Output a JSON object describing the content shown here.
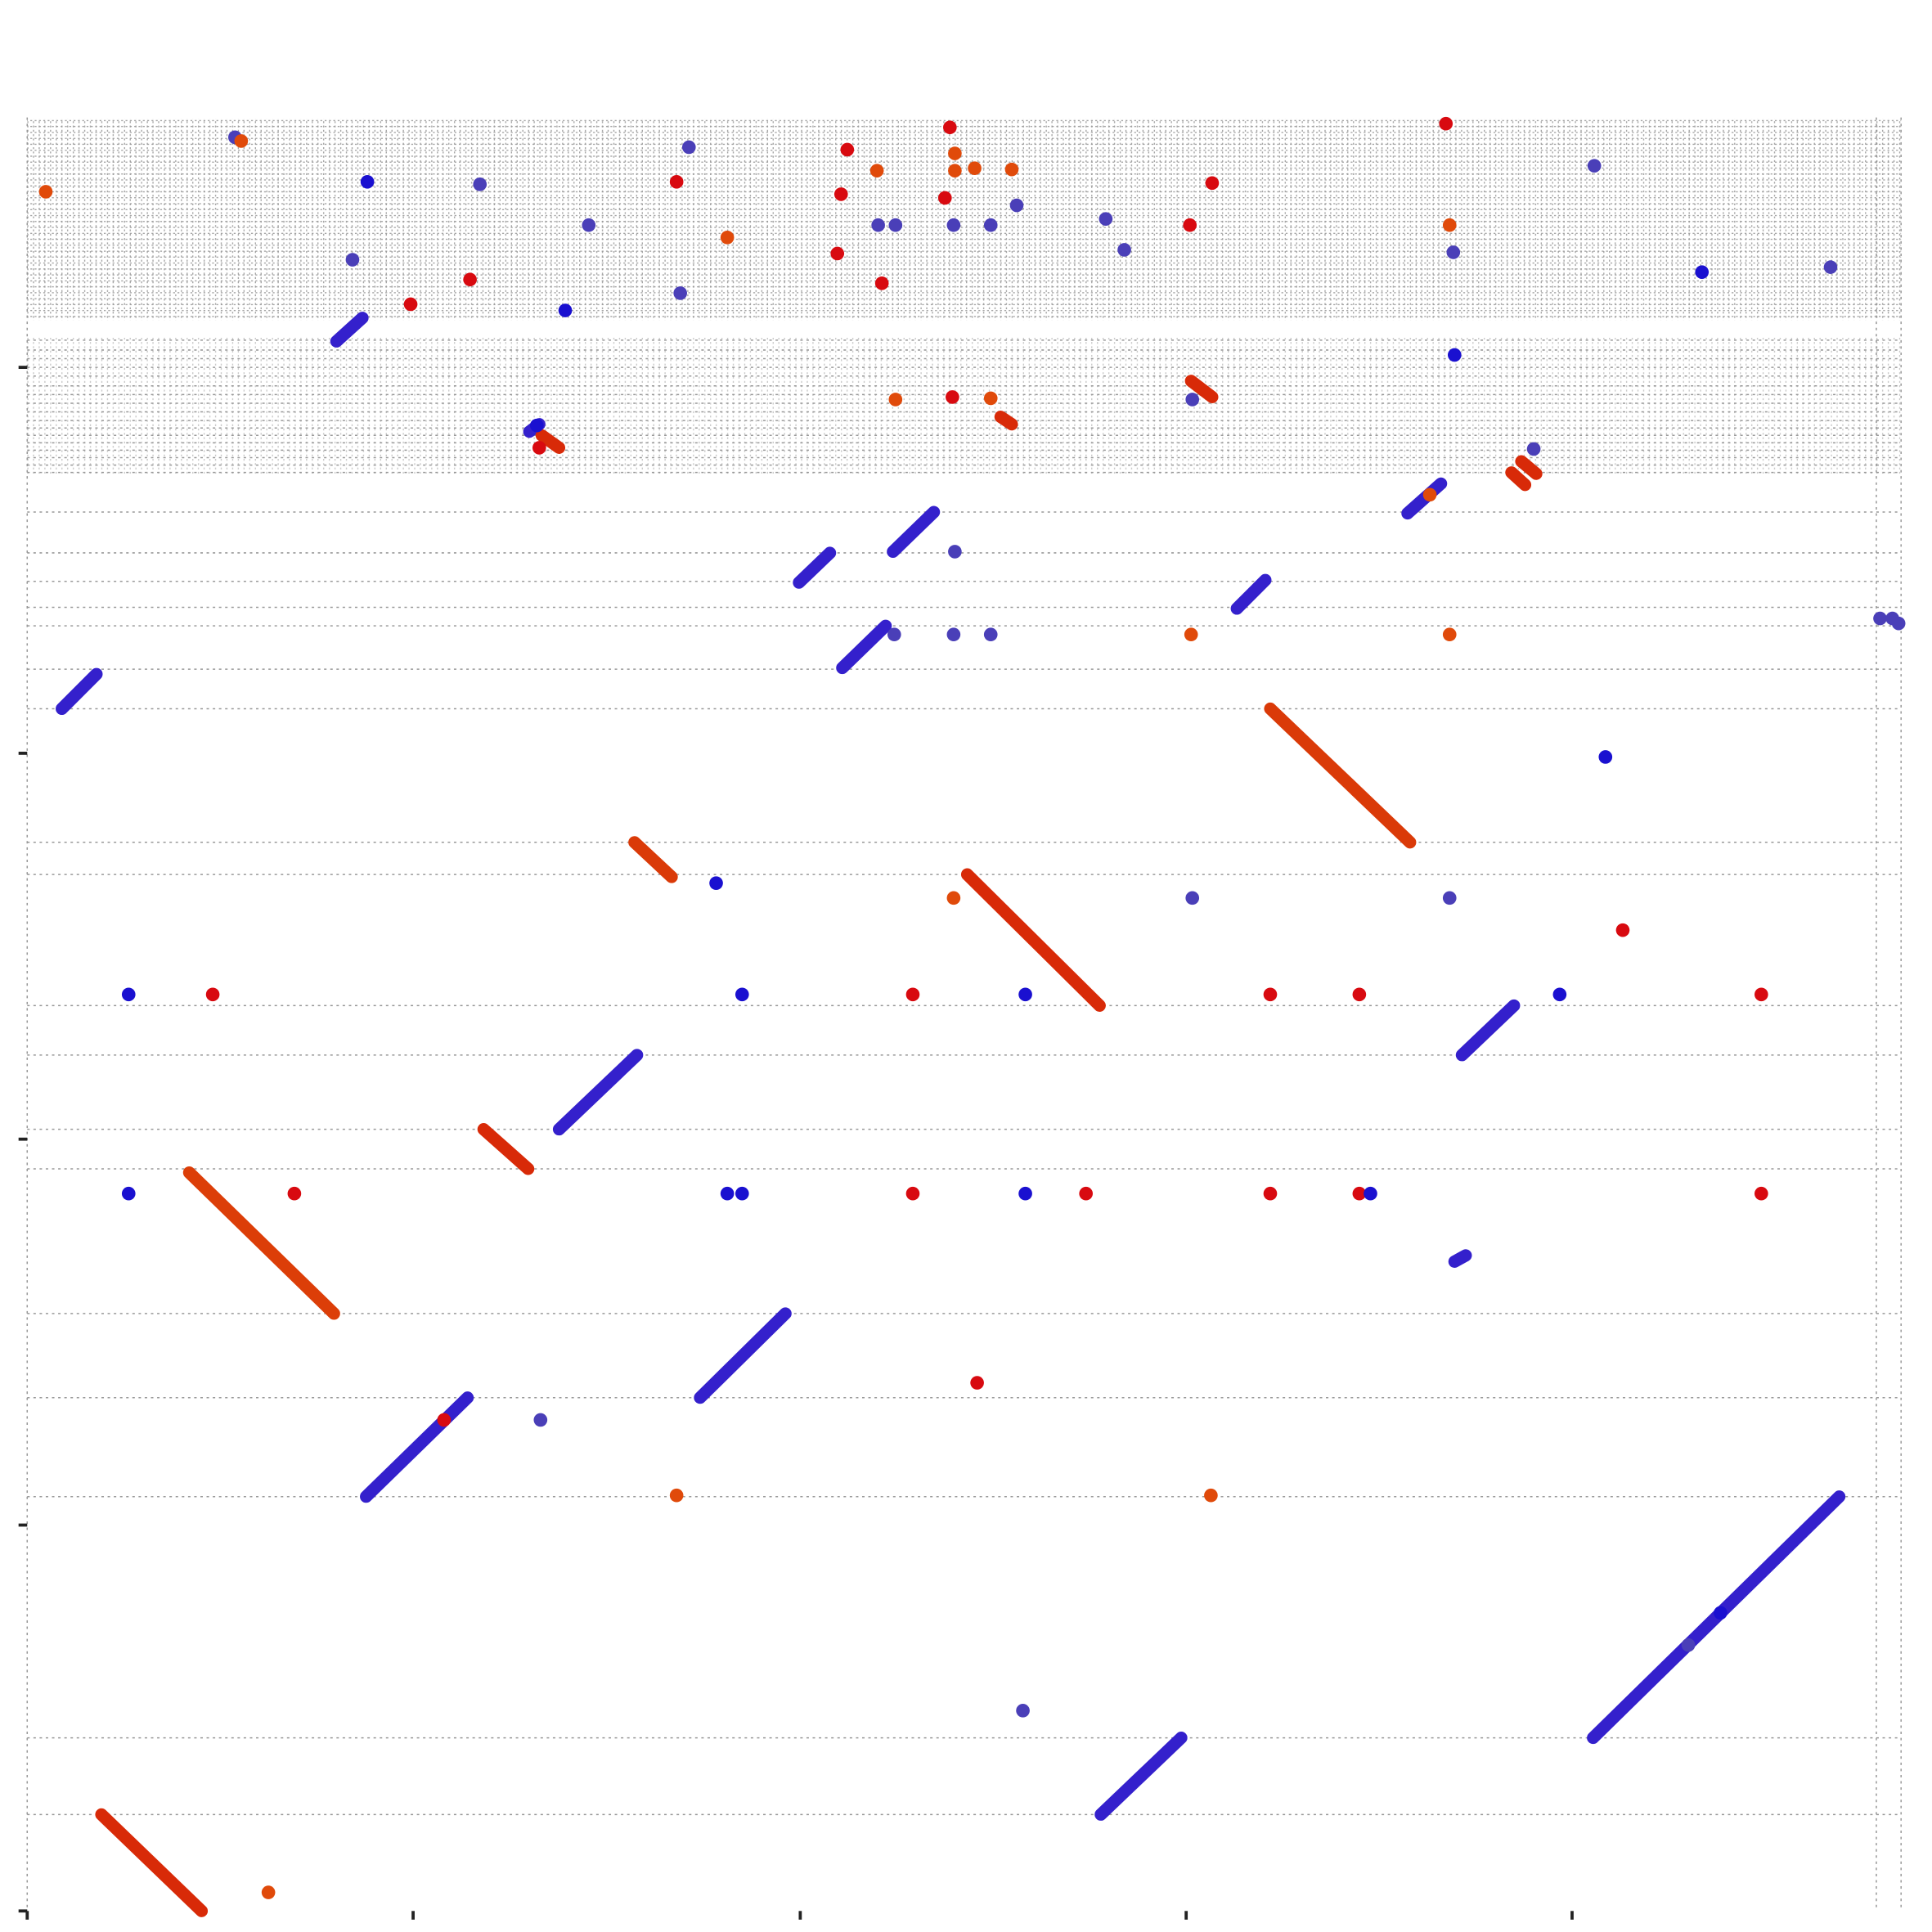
{
  "chart_data": {
    "type": "dotplot",
    "xlim": [
      0,
      1515
    ],
    "ylim": [
      0,
      1450
    ],
    "xticks": [
      0,
      312,
      625,
      937,
      1249
    ],
    "yticks": [
      0,
      312,
      624,
      936,
      1248
    ],
    "hlines": [
      1270,
      1262,
      1255,
      1248,
      1241,
      1233,
      1226,
      1219,
      1212,
      1205,
      1199,
      1193,
      1187,
      1181,
      1175,
      1169,
      1163,
      1131,
      1098,
      1075,
      1054,
      1039,
      1004,
      972,
      864,
      838,
      732,
      692,
      632,
      600,
      483,
      415,
      335,
      140,
      78
    ],
    "vlines": [
      0,
      1495,
      1515
    ],
    "grid_color": "#999999",
    "segments": [
      {
        "x": [
          250,
          271
        ],
        "y": [
          1269,
          1288
        ],
        "color": "#3420cc"
      },
      {
        "x": [
          28,
          56
        ],
        "y": [
          972,
          1000
        ],
        "color": "#3420cc"
      },
      {
        "x": [
          624,
          649
        ],
        "y": [
          1074,
          1098
        ],
        "color": "#3420cc"
      },
      {
        "x": [
          700,
          733
        ],
        "y": [
          1099,
          1131
        ],
        "color": "#3420cc"
      },
      {
        "x": [
          659,
          694
        ],
        "y": [
          1005,
          1039
        ],
        "color": "#3420cc"
      },
      {
        "x": [
          978,
          1001
        ],
        "y": [
          1053,
          1076
        ],
        "color": "#3420cc"
      },
      {
        "x": [
          1116,
          1143
        ],
        "y": [
          1130,
          1154
        ],
        "color": "#3420cc"
      },
      {
        "x": [
          430,
          493
        ],
        "y": [
          632,
          692
        ],
        "color": "#3420cc"
      },
      {
        "x": [
          1160,
          1202
        ],
        "y": [
          692,
          732
        ],
        "color": "#3420cc"
      },
      {
        "x": [
          544,
          613
        ],
        "y": [
          415,
          483
        ],
        "color": "#3420cc"
      },
      {
        "x": [
          274,
          356
        ],
        "y": [
          335,
          415
        ],
        "color": "#3420cc"
      },
      {
        "x": [
          868,
          933
        ],
        "y": [
          78,
          140
        ],
        "color": "#3420cc"
      },
      {
        "x": [
          1266,
          1465
        ],
        "y": [
          140,
          335
        ],
        "color": "#3420cc"
      },
      {
        "x": [
          1154,
          1163
        ],
        "y": [
          525,
          530
        ],
        "color": "#3420cc"
      },
      {
        "x": [
          406,
          414
        ],
        "y": [
          1196,
          1202
        ],
        "color": "#3420cc"
      },
      {
        "x": [
          1005,
          1118
        ],
        "y": [
          972,
          864
        ],
        "color": "#da3a08"
      },
      {
        "x": [
          491,
          521
        ],
        "y": [
          864,
          836
        ],
        "color": "#da3a08"
      },
      {
        "x": [
          760,
          867
        ],
        "y": [
          838,
          732
        ],
        "color": "#d82a08"
      },
      {
        "x": [
          369,
          405
        ],
        "y": [
          632,
          600
        ],
        "color": "#d82a08"
      },
      {
        "x": [
          131,
          248
        ],
        "y": [
          597,
          483
        ],
        "color": "#dc3e08"
      },
      {
        "x": [
          60,
          141
        ],
        "y": [
          78,
          0
        ],
        "color": "#d82a08"
      },
      {
        "x": [
          416,
          430
        ],
        "y": [
          1193,
          1183
        ],
        "color": "#d82a08"
      },
      {
        "x": [
          941,
          958
        ],
        "y": [
          1237,
          1224
        ],
        "color": "#d82a08"
      },
      {
        "x": [
          1200,
          1211
        ],
        "y": [
          1163,
          1153
        ],
        "color": "#d82a08"
      },
      {
        "x": [
          1208,
          1220
        ],
        "y": [
          1172,
          1162
        ],
        "color": "#d82a08"
      },
      {
        "x": [
          787,
          796
        ],
        "y": [
          1208,
          1202
        ],
        "color": "#d82a08"
      }
    ],
    "points": [
      {
        "x": 15,
        "y": 1390,
        "color": "#e04a0a"
      },
      {
        "x": 168,
        "y": 1434,
        "color": "#4a3fb8"
      },
      {
        "x": 173,
        "y": 1431,
        "color": "#e04a0a"
      },
      {
        "x": 275,
        "y": 1398,
        "color": "#1a10d0"
      },
      {
        "x": 366,
        "y": 1396,
        "color": "#4a3fb8"
      },
      {
        "x": 454,
        "y": 1363,
        "color": "#4a3fb8"
      },
      {
        "x": 535,
        "y": 1426,
        "color": "#4a3fb8"
      },
      {
        "x": 525,
        "y": 1398,
        "color": "#d80a10"
      },
      {
        "x": 566,
        "y": 1353,
        "color": "#e04a0a"
      },
      {
        "x": 310,
        "y": 1299,
        "color": "#d80a10"
      },
      {
        "x": 358,
        "y": 1319,
        "color": "#d80a10"
      },
      {
        "x": 263,
        "y": 1335,
        "color": "#4a3fb8"
      },
      {
        "x": 435,
        "y": 1294,
        "color": "#1a10d0"
      },
      {
        "x": 528,
        "y": 1308,
        "color": "#4a3fb8"
      },
      {
        "x": 663,
        "y": 1424,
        "color": "#d80a10"
      },
      {
        "x": 658,
        "y": 1388,
        "color": "#d80a10"
      },
      {
        "x": 687,
        "y": 1407,
        "color": "#e04a0a"
      },
      {
        "x": 688,
        "y": 1363,
        "color": "#4a3fb8"
      },
      {
        "x": 702,
        "y": 1363,
        "color": "#4a3fb8"
      },
      {
        "x": 655,
        "y": 1340,
        "color": "#d80a10"
      },
      {
        "x": 691,
        "y": 1316,
        "color": "#d80a10"
      },
      {
        "x": 746,
        "y": 1442,
        "color": "#d80a10"
      },
      {
        "x": 750,
        "y": 1421,
        "color": "#e04a0a"
      },
      {
        "x": 750,
        "y": 1407,
        "color": "#e04a0a"
      },
      {
        "x": 766,
        "y": 1409,
        "color": "#e04a0a"
      },
      {
        "x": 796,
        "y": 1408,
        "color": "#e04a0a"
      },
      {
        "x": 742,
        "y": 1385,
        "color": "#d80a10"
      },
      {
        "x": 749,
        "y": 1363,
        "color": "#4a3fb8"
      },
      {
        "x": 779,
        "y": 1363,
        "color": "#4a3fb8"
      },
      {
        "x": 800,
        "y": 1379,
        "color": "#4a3fb8"
      },
      {
        "x": 872,
        "y": 1368,
        "color": "#4a3fb8"
      },
      {
        "x": 887,
        "y": 1343,
        "color": "#4a3fb8"
      },
      {
        "x": 940,
        "y": 1363,
        "color": "#d80a10"
      },
      {
        "x": 958,
        "y": 1397,
        "color": "#d80a10"
      },
      {
        "x": 1147,
        "y": 1445,
        "color": "#d80a10"
      },
      {
        "x": 1150,
        "y": 1363,
        "color": "#e04a0a"
      },
      {
        "x": 1153,
        "y": 1341,
        "color": "#4a3fb8"
      },
      {
        "x": 1267,
        "y": 1411,
        "color": "#4a3fb8"
      },
      {
        "x": 1354,
        "y": 1325,
        "color": "#1a10d0"
      },
      {
        "x": 1458,
        "y": 1329,
        "color": "#4a3fb8"
      },
      {
        "x": 1154,
        "y": 1258,
        "color": "#1a10d0"
      },
      {
        "x": 702,
        "y": 1222,
        "color": "#e04a0a"
      },
      {
        "x": 748,
        "y": 1224,
        "color": "#d80a10"
      },
      {
        "x": 779,
        "y": 1223,
        "color": "#e04a0a"
      },
      {
        "x": 942,
        "y": 1222,
        "color": "#4a3fb8"
      },
      {
        "x": 412,
        "y": 1201,
        "color": "#1a10d0"
      },
      {
        "x": 414,
        "y": 1183,
        "color": "#d80a10"
      },
      {
        "x": 1218,
        "y": 1182,
        "color": "#4a3fb8"
      },
      {
        "x": 1134,
        "y": 1145,
        "color": "#e04a0a"
      },
      {
        "x": 750,
        "y": 1099,
        "color": "#4a3fb8"
      },
      {
        "x": 701,
        "y": 1032,
        "color": "#4a3fb8"
      },
      {
        "x": 749,
        "y": 1032,
        "color": "#4a3fb8"
      },
      {
        "x": 779,
        "y": 1032,
        "color": "#4a3fb8"
      },
      {
        "x": 941,
        "y": 1032,
        "color": "#e04a0a"
      },
      {
        "x": 1150,
        "y": 1032,
        "color": "#e04a0a"
      },
      {
        "x": 1276,
        "y": 933,
        "color": "#1a10d0"
      },
      {
        "x": 557,
        "y": 831,
        "color": "#1a10d0"
      },
      {
        "x": 749,
        "y": 819,
        "color": "#e04a0a"
      },
      {
        "x": 942,
        "y": 819,
        "color": "#4a3fb8"
      },
      {
        "x": 1150,
        "y": 819,
        "color": "#4a3fb8"
      },
      {
        "x": 1290,
        "y": 793,
        "color": "#d80a10"
      },
      {
        "x": 82,
        "y": 741,
        "color": "#1a10d0"
      },
      {
        "x": 150,
        "y": 741,
        "color": "#d80a10"
      },
      {
        "x": 578,
        "y": 741,
        "color": "#1a10d0"
      },
      {
        "x": 716,
        "y": 741,
        "color": "#d80a10"
      },
      {
        "x": 807,
        "y": 741,
        "color": "#1a10d0"
      },
      {
        "x": 1005,
        "y": 741,
        "color": "#d80a10"
      },
      {
        "x": 1077,
        "y": 741,
        "color": "#d80a10"
      },
      {
        "x": 1239,
        "y": 741,
        "color": "#1a10d0"
      },
      {
        "x": 1402,
        "y": 741,
        "color": "#d80a10"
      },
      {
        "x": 82,
        "y": 580,
        "color": "#1a10d0"
      },
      {
        "x": 216,
        "y": 580,
        "color": "#d80a10"
      },
      {
        "x": 566,
        "y": 580,
        "color": "#1a10d0"
      },
      {
        "x": 578,
        "y": 580,
        "color": "#1a10d0"
      },
      {
        "x": 716,
        "y": 580,
        "color": "#d80a10"
      },
      {
        "x": 807,
        "y": 580,
        "color": "#1a10d0"
      },
      {
        "x": 856,
        "y": 580,
        "color": "#d80a10"
      },
      {
        "x": 1005,
        "y": 580,
        "color": "#d80a10"
      },
      {
        "x": 1077,
        "y": 580,
        "color": "#d80a10"
      },
      {
        "x": 1086,
        "y": 580,
        "color": "#1a10d0"
      },
      {
        "x": 1402,
        "y": 580,
        "color": "#d80a10"
      },
      {
        "x": 768,
        "y": 427,
        "color": "#d80a10"
      },
      {
        "x": 337,
        "y": 397,
        "color": "#d80a10"
      },
      {
        "x": 415,
        "y": 397,
        "color": "#4a3fb8"
      },
      {
        "x": 525,
        "y": 336,
        "color": "#e04a0a"
      },
      {
        "x": 957,
        "y": 336,
        "color": "#e04a0a"
      },
      {
        "x": 805,
        "y": 162,
        "color": "#4a3fb8"
      },
      {
        "x": 1369,
        "y": 241,
        "color": "#1a10d0"
      },
      {
        "x": 1343,
        "y": 215,
        "color": "#4a3fb8"
      },
      {
        "x": 195,
        "y": 15,
        "color": "#e04a0a"
      },
      {
        "x": 1498,
        "y": 1045,
        "color": "#4a3fb8"
      },
      {
        "x": 1508,
        "y": 1045,
        "color": "#4a3fb8"
      },
      {
        "x": 1513,
        "y": 1041,
        "color": "#4a3fb8"
      }
    ]
  }
}
